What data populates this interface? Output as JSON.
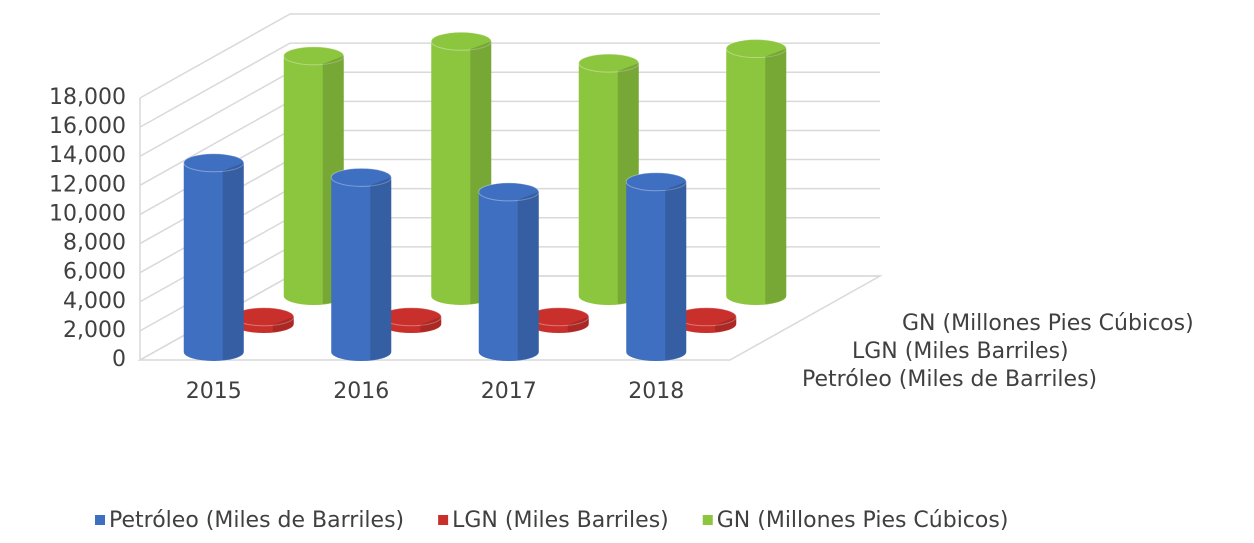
{
  "chart_data": {
    "type": "bar3d",
    "categories": [
      "2015",
      "2016",
      "2017",
      "2018"
    ],
    "series": [
      {
        "name": "Petróleo (Miles de Barriles)",
        "color": "#3f6fc0",
        "values": [
          13000,
          12000,
          11000,
          11700
        ]
      },
      {
        "name": "LGN (Miles Barriles)",
        "color": "#c9302c",
        "values": [
          500,
          500,
          500,
          500
        ]
      },
      {
        "name": "GN (Millones Pies Cúbicos)",
        "color": "#8cc63f",
        "values": [
          16500,
          17500,
          16000,
          17000
        ]
      }
    ],
    "ylim": [
      0,
      18000
    ],
    "yticks": [
      {
        "value": 0,
        "label": "0"
      },
      {
        "value": 2000,
        "label": "2,000"
      },
      {
        "value": 4000,
        "label": "4,000"
      },
      {
        "value": 6000,
        "label": "6,000"
      },
      {
        "value": 8000,
        "label": "8,000"
      },
      {
        "value": 10000,
        "label": "10,000"
      },
      {
        "value": 12000,
        "label": "12,000"
      },
      {
        "value": 14000,
        "label": "14,000"
      },
      {
        "value": 16000,
        "label": "16,000"
      },
      {
        "value": 18000,
        "label": "18,000"
      }
    ],
    "grid": true,
    "legend": "bottom"
  }
}
